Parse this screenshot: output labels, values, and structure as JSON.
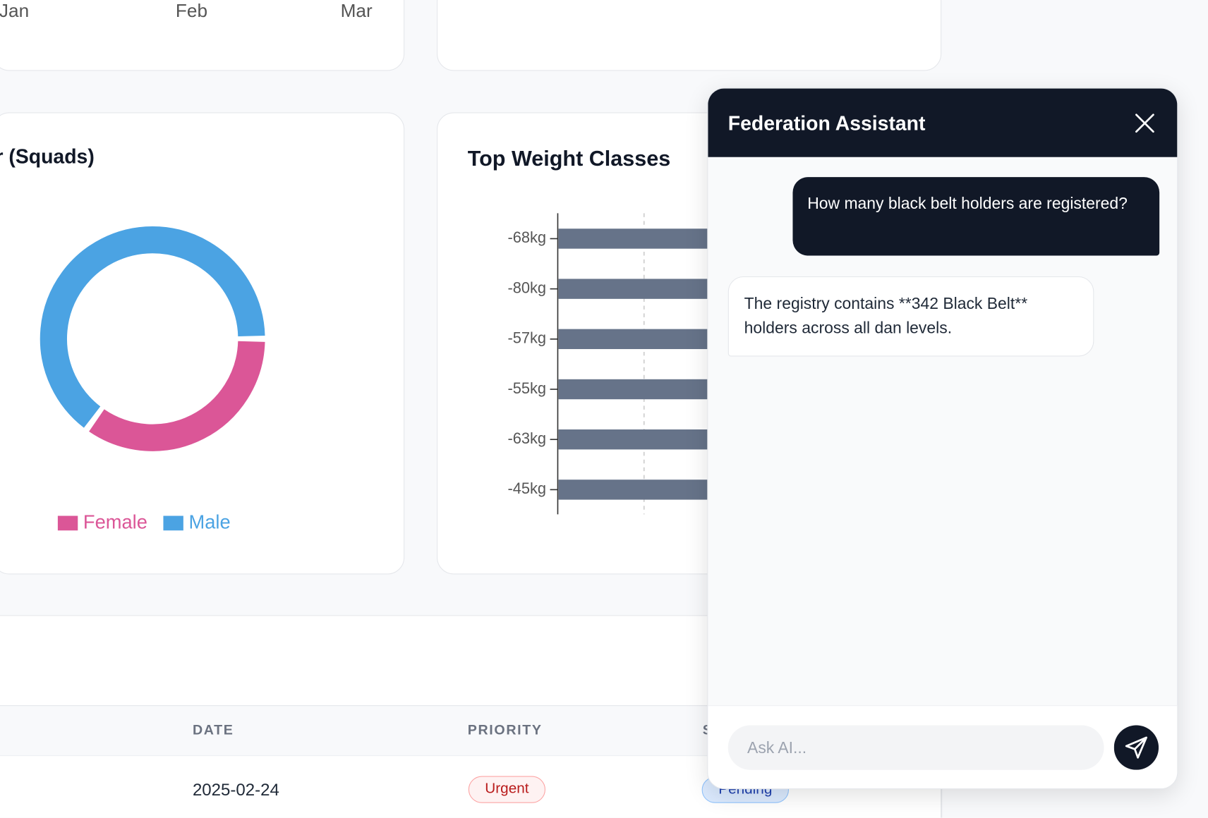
{
  "top_card": {
    "x_labels": [
      "Jan",
      "Feb",
      "Mar"
    ]
  },
  "chart_data": [
    {
      "type": "pie",
      "title": "r (Squads)",
      "categories": [
        "Female",
        "Male"
      ],
      "values": [
        35,
        65
      ],
      "colors": [
        "#db5697",
        "#4ba3e3"
      ],
      "donut": true,
      "legend": "bottom"
    },
    {
      "type": "bar",
      "title": "Top Weight Classes",
      "categories": [
        "-68kg",
        "-80kg",
        "-57kg",
        "-55kg",
        "-63kg",
        "-45kg"
      ],
      "color": "#667389",
      "orientation": "horizontal"
    }
  ],
  "table": {
    "headers": [
      "DATE",
      "PRIORITY",
      "S"
    ],
    "rows": [
      [
        "2025-02-24",
        "Urgent",
        "Pending"
      ]
    ]
  },
  "chat": {
    "title": "Federation Assistant",
    "messages": [
      {
        "role": "user",
        "text": "How many black belt holders are registered?"
      },
      {
        "role": "assistant",
        "text": "The registry contains **342 Black Belt** holders across all dan levels."
      }
    ],
    "placeholder": "Ask AI..."
  }
}
